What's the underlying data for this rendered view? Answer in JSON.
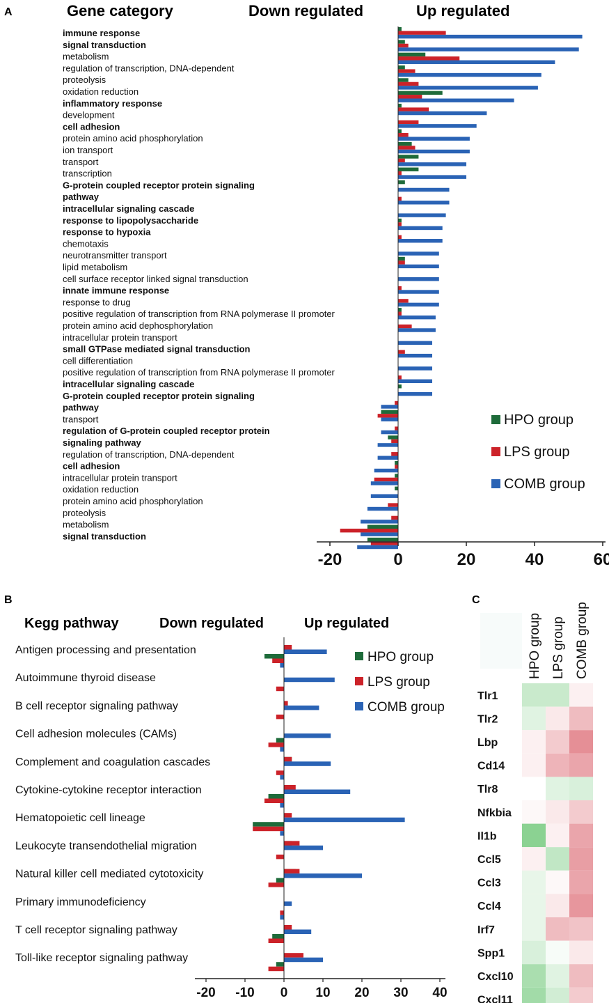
{
  "colors": {
    "hpo": "#1e6b3a",
    "lps": "#cc2229",
    "comb": "#2a63b5",
    "axis": "#222222"
  },
  "panel_a": {
    "letter": "A",
    "header_category": "Gene category",
    "header_down": "Down regulated",
    "header_up": "Up regulated"
  },
  "panel_b": {
    "letter": "B",
    "header_category": "Kegg pathway",
    "header_down": "Down regulated",
    "header_up": "Up regulated"
  },
  "panel_c": {
    "letter": "C"
  },
  "chart_data": [
    {
      "type": "bar",
      "orientation": "horizontal",
      "title": "Gene category",
      "xlim": [
        -22,
        62
      ],
      "xticks": [
        "-20",
        "0",
        "20",
        "40",
        "60"
      ],
      "legend": [
        "HPO group",
        "LPS group",
        "COMB group"
      ],
      "legend_position": "bottom-right",
      "categories": [
        {
          "label": "immune response",
          "bold": true,
          "hpo": 1,
          "lps": 14,
          "comb": 54
        },
        {
          "label": "signal transduction",
          "bold": true,
          "hpo": 2,
          "lps": 3,
          "comb": 53
        },
        {
          "label": "metabolism",
          "bold": false,
          "hpo": 8,
          "lps": 18,
          "comb": 46
        },
        {
          "label": "regulation of transcription, DNA-dependent",
          "bold": false,
          "hpo": 2,
          "lps": 5,
          "comb": 42
        },
        {
          "label": "proteolysis",
          "bold": false,
          "hpo": 3,
          "lps": 6,
          "comb": 41
        },
        {
          "label": "oxidation reduction",
          "bold": false,
          "hpo": 13,
          "lps": 7,
          "comb": 34
        },
        {
          "label": "inflammatory response",
          "bold": true,
          "hpo": 1,
          "lps": 9,
          "comb": 26
        },
        {
          "label": "development",
          "bold": false,
          "hpo": 0,
          "lps": 6,
          "comb": 23
        },
        {
          "label": "cell adhesion",
          "bold": true,
          "hpo": 1,
          "lps": 3,
          "comb": 21
        },
        {
          "label": "protein amino acid phosphorylation",
          "bold": false,
          "hpo": 4,
          "lps": 5,
          "comb": 21
        },
        {
          "label": "ion transport",
          "bold": false,
          "hpo": 6,
          "lps": 2,
          "comb": 20
        },
        {
          "label": "transport",
          "bold": false,
          "hpo": 6,
          "lps": 1,
          "comb": 20
        },
        {
          "label": "transcription",
          "bold": false,
          "hpo": 2,
          "lps": 0,
          "comb": 15
        },
        {
          "label": "G-protein coupled receptor protein signaling pathway",
          "bold": true,
          "hpo": 0,
          "lps": 1,
          "comb": 15
        },
        {
          "label": "intracellular signaling cascade",
          "bold": true,
          "hpo": 0,
          "lps": 0,
          "comb": 14
        },
        {
          "label": "response to lipopolysaccharide",
          "bold": true,
          "hpo": 1,
          "lps": 1,
          "comb": 13
        },
        {
          "label": "response to hypoxia",
          "bold": true,
          "hpo": 0,
          "lps": 1,
          "comb": 13
        },
        {
          "label": "chemotaxis",
          "bold": false,
          "hpo": 0,
          "lps": 0,
          "comb": 12
        },
        {
          "label": "neurotransmitter transport",
          "bold": false,
          "hpo": 2,
          "lps": 2,
          "comb": 12
        },
        {
          "label": "lipid metabolism",
          "bold": false,
          "hpo": 0,
          "lps": 0,
          "comb": 12
        },
        {
          "label": "cell surface receptor linked signal transduction",
          "bold": false,
          "hpo": 0,
          "lps": 1,
          "comb": 12
        },
        {
          "label": "innate immune response",
          "bold": true,
          "hpo": 0,
          "lps": 3,
          "comb": 12
        },
        {
          "label": "response to drug",
          "bold": false,
          "hpo": 1,
          "lps": 1,
          "comb": 11
        },
        {
          "label": "positive regulation of transcription from RNA polymerase II promoter",
          "bold": false,
          "hpo": 0,
          "lps": 4,
          "comb": 11
        },
        {
          "label": "protein amino acid dephosphorylation",
          "bold": false,
          "hpo": 0,
          "lps": 0,
          "comb": 10
        },
        {
          "label": "intracellular protein transport",
          "bold": false,
          "hpo": 0,
          "lps": 2,
          "comb": 10
        },
        {
          "label": "small GTPase mediated signal transduction",
          "bold": true,
          "hpo": 0,
          "lps": 0,
          "comb": 10
        },
        {
          "label": "cell differentiation",
          "bold": false,
          "hpo": 0,
          "lps": 1,
          "comb": 10
        },
        {
          "label": "positive regulation of transcription from RNA polymerase II promoter",
          "bold": false,
          "hpo": 1,
          "lps": 0,
          "comb": 10
        },
        {
          "label": "intracellular signaling cascade",
          "bold": true,
          "hpo": 0,
          "lps": -1,
          "comb": -5
        },
        {
          "label": "G-protein coupled receptor protein signaling pathway",
          "bold": true,
          "hpo": -5,
          "lps": -6,
          "comb": -5
        },
        {
          "label": "transport",
          "bold": false,
          "hpo": 0,
          "lps": -1,
          "comb": -5
        },
        {
          "label": "regulation of G-protein coupled receptor protein signaling pathway",
          "bold": true,
          "hpo": -3,
          "lps": -2,
          "comb": -6
        },
        {
          "label": "regulation of transcription, DNA-dependent",
          "bold": false,
          "hpo": 0,
          "lps": -2,
          "comb": -6
        },
        {
          "label": "cell adhesion",
          "bold": true,
          "hpo": -1,
          "lps": -1,
          "comb": -7
        },
        {
          "label": "intracellular protein transport",
          "bold": false,
          "hpo": -1,
          "lps": -7,
          "comb": -8
        },
        {
          "label": "oxidation reduction",
          "bold": false,
          "hpo": -1,
          "lps": 0,
          "comb": -8
        },
        {
          "label": "protein amino acid phosphorylation",
          "bold": false,
          "hpo": 0,
          "lps": -3,
          "comb": -9
        },
        {
          "label": "proteolysis",
          "bold": false,
          "hpo": 0,
          "lps": -2,
          "comb": -11
        },
        {
          "label": "metabolism",
          "bold": false,
          "hpo": -9,
          "lps": -17,
          "comb": -11
        },
        {
          "label": "signal transduction",
          "bold": true,
          "hpo": -9,
          "lps": -8,
          "comb": -12
        }
      ]
    },
    {
      "type": "bar",
      "orientation": "horizontal",
      "title": "Kegg pathway",
      "xlim": [
        -22,
        43
      ],
      "xticks": [
        "-20",
        "-10",
        "0",
        "10",
        "20",
        "30",
        "40"
      ],
      "legend": [
        "HPO group",
        "LPS group",
        "COMB group"
      ],
      "legend_position": "top-right",
      "categories": [
        {
          "label": "Antigen processing and presentation",
          "hpo": -5,
          "lps": -3,
          "comb": 11,
          "hpo_up": 0,
          "lps_up": 2,
          "comb_down": -1
        },
        {
          "label": "Autoimmune thyroid disease",
          "hpo": 0,
          "lps": -2,
          "comb": 13
        },
        {
          "label": "B cell receptor signaling pathway",
          "hpo": 0,
          "lps": -2,
          "comb": 9,
          "lps_up": 1
        },
        {
          "label": "Cell adhesion molecules (CAMs)",
          "hpo": -2,
          "lps": -4,
          "comb": 12,
          "comb_down": -1
        },
        {
          "label": "Complement and coagulation cascades",
          "hpo": 2,
          "lps": -2,
          "comb": 12,
          "lps_up": 2,
          "comb_down": -1
        },
        {
          "label": "Cytokine-cytokine receptor interaction",
          "hpo": -4,
          "lps": -5,
          "comb": 17,
          "lps_up": 3,
          "comb_down": -1
        },
        {
          "label": "Hematopoietic cell lineage",
          "hpo": -8,
          "lps": -8,
          "comb": 31,
          "lps_up": 2,
          "comb_down": -1
        },
        {
          "label": "Leukocyte transendothelial migration",
          "hpo": 2,
          "lps": -2,
          "comb": 10,
          "lps_up": 4
        },
        {
          "label": "Natural killer cell mediated cytotoxicity",
          "hpo": 3,
          "lps": -4,
          "comb": 20,
          "lps_up": 4,
          "hpo_down": -2
        },
        {
          "label": "Primary immunodeficiency",
          "hpo": 0,
          "lps": -1,
          "comb": 2,
          "comb_down": -1
        },
        {
          "label": "T cell receptor signaling pathway",
          "hpo": -3,
          "lps": -4,
          "comb": 7,
          "lps_up": 2
        },
        {
          "label": "Toll-like receptor signaling pathway",
          "hpo": -2,
          "lps": -4,
          "comb": 10,
          "lps_up": 5
        }
      ]
    },
    {
      "type": "heatmap",
      "columns": [
        "HPO group",
        "LPS group",
        "COMB group"
      ],
      "rows": [
        "Tlr1",
        "Tlr2",
        "Lbp",
        "Cd14",
        "Tlr8",
        "Nfkbia",
        "Il1b",
        "Ccl5",
        "Ccl3",
        "Ccl4",
        "Irf7",
        "Spp1",
        "Cxcl10",
        "Cxcl11"
      ],
      "scale": "negative = green, positive = red, range -1 to 1",
      "values": [
        [
          -0.35,
          -0.35,
          0.1
        ],
        [
          -0.2,
          0.15,
          0.45
        ],
        [
          0.1,
          0.35,
          0.75
        ],
        [
          0.1,
          0.5,
          0.6
        ],
        [
          0,
          -0.2,
          -0.25
        ],
        [
          0.05,
          0.15,
          0.35
        ],
        [
          -0.75,
          0.1,
          0.6
        ],
        [
          0.1,
          -0.4,
          0.65
        ],
        [
          -0.15,
          0.05,
          0.6
        ],
        [
          -0.15,
          0.15,
          0.7
        ],
        [
          -0.15,
          0.45,
          0.4
        ],
        [
          -0.25,
          -0.05,
          0.15
        ],
        [
          -0.55,
          -0.2,
          0.45
        ],
        [
          -0.6,
          -0.3,
          0.35
        ]
      ]
    }
  ]
}
